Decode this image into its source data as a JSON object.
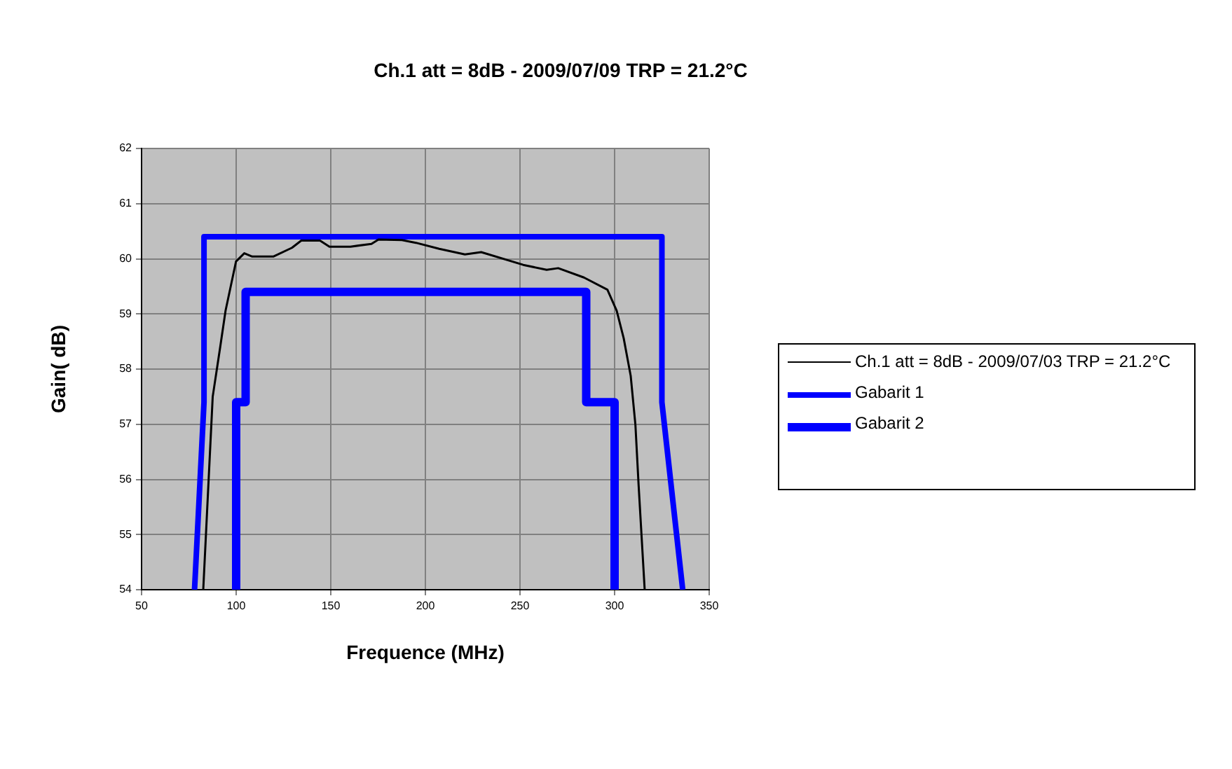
{
  "chart_data": {
    "type": "line",
    "title": "Ch.1 att = 8dB - 2009/07/09 TRP = 21.2°C",
    "xlabel": "Frequence (MHz)",
    "ylabel": "Gain( dB)",
    "xlim": [
      50,
      350
    ],
    "xticks": [
      50,
      100,
      150,
      200,
      250,
      300,
      350
    ],
    "ylim": [
      54,
      62
    ],
    "yticks": [
      54,
      55,
      56,
      57,
      58,
      59,
      60,
      61,
      62
    ],
    "grid": true,
    "legend": "right",
    "marker": "none",
    "line_style": "solid",
    "series": [
      {
        "name": "Ch.1 att = 8dB - 2009/07/03 TRP = 21.2°C",
        "color": "#000000",
        "x": [
          82.6,
          87.6,
          91.3,
          94.4,
          99.9,
          104.3,
          108.5,
          119.6,
          129.5,
          134.4,
          144.3,
          149.3,
          160.4,
          171.5,
          175.2,
          187.6,
          195,
          207.3,
          220.9,
          229.5,
          251.7,
          264.1,
          270.2,
          283.8,
          296.2,
          301.1,
          304.8,
          308.5,
          311,
          312.7,
          315.9
        ],
        "values": [
          54,
          57.5,
          58.34,
          59.06,
          59.95,
          60.1,
          60.04,
          60.04,
          60.2,
          60.33,
          60.33,
          60.22,
          60.22,
          60.27,
          60.35,
          60.34,
          60.29,
          60.18,
          60.08,
          60.12,
          59.89,
          59.8,
          59.83,
          59.66,
          59.44,
          59.06,
          58.56,
          57.88,
          56.99,
          55.89,
          54
        ]
      },
      {
        "name": "Gabarit 1",
        "color": "#0000ff",
        "x": [
          78,
          83,
          83,
          325,
          325,
          336
        ],
        "values": [
          54,
          57.4,
          60.4,
          60.4,
          57.4,
          54
        ]
      },
      {
        "name": "Gabarit 2",
        "color": "#0000ff",
        "x": [
          100,
          100,
          105,
          105,
          285,
          285,
          300,
          300
        ],
        "values": [
          54,
          57.4,
          57.4,
          59.4,
          59.4,
          57.4,
          57.4,
          54
        ]
      }
    ]
  }
}
